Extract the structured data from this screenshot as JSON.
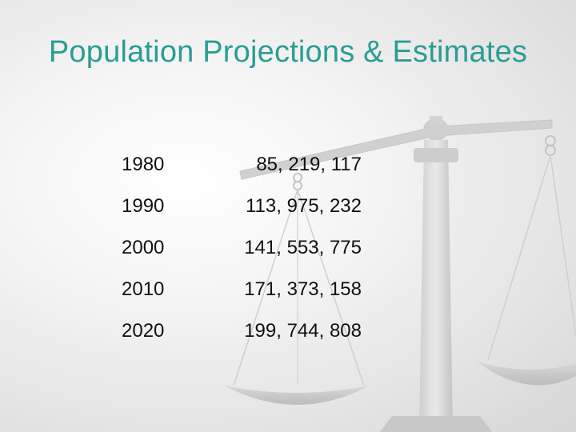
{
  "slide": {
    "title": "Population Projections & Estimates",
    "background_icon": "balance-scale-icon",
    "title_color": "#2a9d94"
  },
  "table": {
    "rows": [
      {
        "year": "1980",
        "population": "85, 219, 117"
      },
      {
        "year": "1990",
        "population": "113, 975, 232"
      },
      {
        "year": "2000",
        "population": "141, 553, 775"
      },
      {
        "year": "2010",
        "population": "171, 373, 158"
      },
      {
        "year": "2020",
        "population": "199, 744, 808"
      }
    ]
  }
}
